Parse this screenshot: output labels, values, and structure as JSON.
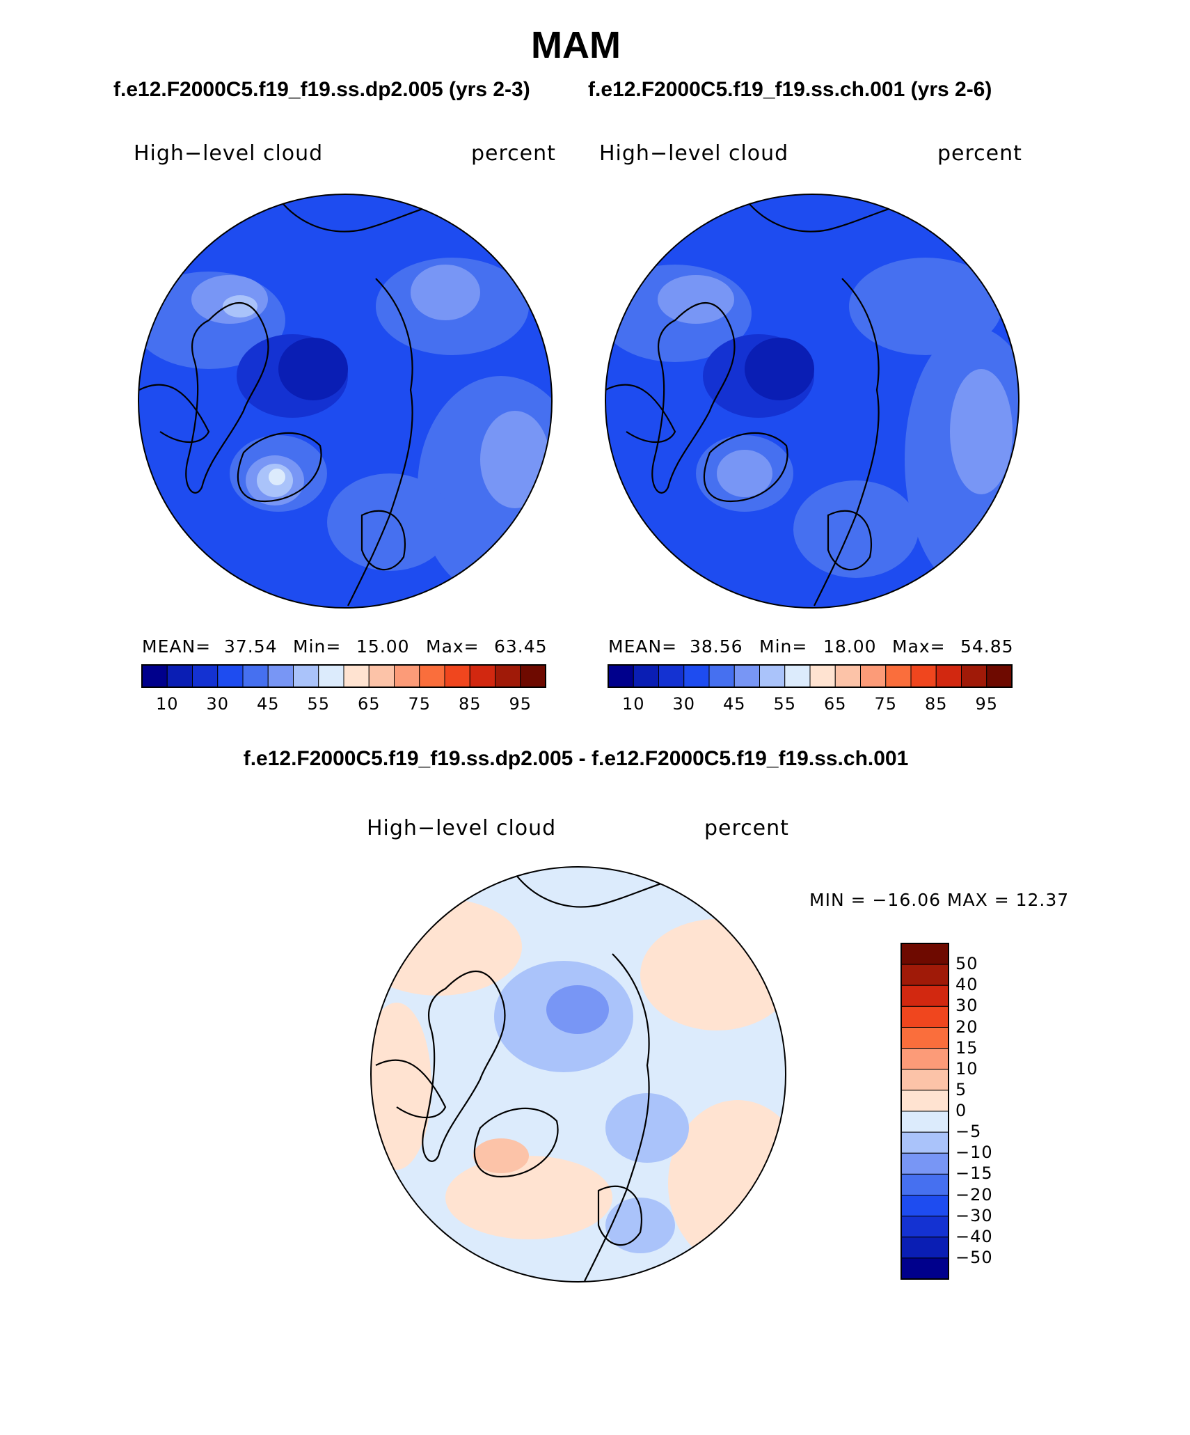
{
  "title": "MAM",
  "case_titles": {
    "left": "f.e12.F2000C5.f19_f19.ss.dp2.005 (yrs 2-3)",
    "right": "f.e12.F2000C5.f19_f19.ss.ch.001 (yrs 2-6)",
    "diff": "f.e12.F2000C5.f19_f19.ss.dp2.005 - f.e12.F2000C5.f19_f19.ss.ch.001"
  },
  "colors": {
    "abs_scale": [
      "#00008c",
      "#0a1eb4",
      "#1432d2",
      "#1e4cf0",
      "#4670f0",
      "#7896f5",
      "#aac3fa",
      "#dcebfc",
      "#ffe3d1",
      "#fcc3a8",
      "#fc9b78",
      "#fa6e3c",
      "#f0461e",
      "#d22810",
      "#a01a08",
      "#6e0a00"
    ],
    "diff_scale": [
      "#00008c",
      "#0a1eb4",
      "#1432d2",
      "#1e4cf0",
      "#4670f0",
      "#7896f5",
      "#aac3fa",
      "#dcebfc",
      "#ffe3d1",
      "#fcc3a8",
      "#fc9b78",
      "#fa6e3c",
      "#f0461e",
      "#d22810",
      "#a01a08",
      "#6e0a00"
    ]
  },
  "panels": [
    {
      "id": "left",
      "variable": "High−level cloud",
      "units": "percent",
      "mean_label": "MEAN=",
      "mean": "37.54",
      "min_label": "Min=",
      "min": "15.00",
      "max_label": "Max=",
      "max": "63.45"
    },
    {
      "id": "right",
      "variable": "High−level cloud",
      "units": "percent",
      "mean_label": "MEAN=",
      "mean": "38.56",
      "min_label": "Min=",
      "min": "18.00",
      "max_label": "Max=",
      "max": "54.85"
    },
    {
      "id": "diff",
      "variable": "High−level cloud",
      "units": "percent",
      "minmax_text": "MIN = −16.06 MAX =   12.37"
    }
  ],
  "abs_colorbar_labels": [
    "10",
    "30",
    "45",
    "55",
    "65",
    "75",
    "85",
    "95"
  ],
  "diff_colorbar_labels": [
    "50",
    "40",
    "30",
    "20",
    "15",
    "10",
    "5",
    "0",
    "−5",
    "−10",
    "−15",
    "−20",
    "−30",
    "−40",
    "−50"
  ],
  "chart_data": [
    {
      "type": "heatmap",
      "projection": "north polar stereographic",
      "title": "High−level cloud",
      "units": "percent",
      "case": "f.e12.F2000C5.f19_f19.ss.dp2.005 (yrs 2-3)",
      "season": "MAM",
      "mean": 37.54,
      "min": 15.0,
      "max": 63.45,
      "contour_levels": [
        5,
        10,
        20,
        30,
        40,
        45,
        50,
        55,
        60,
        65,
        70,
        75,
        80,
        85,
        90,
        95
      ]
    },
    {
      "type": "heatmap",
      "projection": "north polar stereographic",
      "title": "High−level cloud",
      "units": "percent",
      "case": "f.e12.F2000C5.f19_f19.ss.ch.001 (yrs 2-6)",
      "season": "MAM",
      "mean": 38.56,
      "min": 18.0,
      "max": 54.85,
      "contour_levels": [
        5,
        10,
        20,
        30,
        40,
        45,
        50,
        55,
        60,
        65,
        70,
        75,
        80,
        85,
        90,
        95
      ]
    },
    {
      "type": "heatmap",
      "projection": "north polar stereographic",
      "title": "High−level cloud",
      "units": "percent",
      "case": "f.e12.F2000C5.f19_f19.ss.dp2.005 - f.e12.F2000C5.f19_f19.ss.ch.001",
      "season": "MAM",
      "min": -16.06,
      "max": 12.37,
      "contour_levels": [
        -50,
        -40,
        -30,
        -20,
        -15,
        -10,
        -5,
        0,
        5,
        10,
        15,
        20,
        30,
        40,
        50
      ]
    }
  ]
}
